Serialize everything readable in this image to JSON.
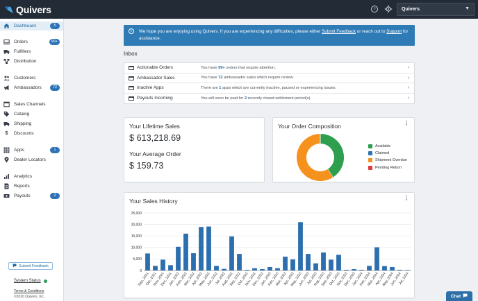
{
  "brand": {
    "name": "Quivers"
  },
  "topbar": {
    "help_icon": "help-circle-icon",
    "settings_icon": "gear-icon",
    "account_value": "Quivers"
  },
  "sidebar": {
    "items": [
      {
        "label": "Dashboard",
        "icon": "home-icon",
        "badge": "5",
        "active": true
      },
      {
        "label": "Orders",
        "icon": "inbox-icon",
        "badge": "99+"
      },
      {
        "label": "Fulfillers",
        "icon": "truck-icon"
      },
      {
        "label": "Distribution",
        "icon": "sitemap-icon"
      },
      {
        "label": "Customers",
        "icon": "users-icon"
      },
      {
        "label": "Ambassadors",
        "icon": "megaphone-icon",
        "badge": "72"
      },
      {
        "label": "Sales Channels",
        "icon": "browser-icon"
      },
      {
        "label": "Catalog",
        "icon": "tag-icon"
      },
      {
        "label": "Shipping",
        "icon": "shipping-truck-icon"
      },
      {
        "label": "Discounts",
        "icon": "dollar-icon"
      },
      {
        "label": "Apps",
        "icon": "grid-icon",
        "badge": "1"
      },
      {
        "label": "Dealer Locators",
        "icon": "map-pin-icon"
      },
      {
        "label": "Analytics",
        "icon": "bar-chart-icon"
      },
      {
        "label": "Reports",
        "icon": "document-icon"
      },
      {
        "label": "Payouts",
        "icon": "payout-icon",
        "badge": "2"
      }
    ],
    "feedback_button": "Submit Feedback",
    "system_status": "System Status",
    "terms": "Terms & Conditions",
    "copyright": "©2020 Quivers, Inc."
  },
  "alert": {
    "text_before": "We hope you are enjoying using Quivers. If you are experiencing any difficulties, please either ",
    "link1": "Submit Feedback",
    "text_middle": " or reach out to ",
    "link2": "Support",
    "text_after": " for assistance."
  },
  "inbox": {
    "title": "Inbox",
    "rows": [
      {
        "label": "Actionable Orders",
        "pre": "You have ",
        "value": "99+",
        "post": " orders that require attention."
      },
      {
        "label": "Ambassador Sales",
        "pre": "You have ",
        "value": "72",
        "post": " ambassador sales which require review."
      },
      {
        "label": "Inactive Apps",
        "pre": "There are ",
        "value": "1",
        "post": " apps which are currently inactive, paused or experiencing issues."
      },
      {
        "label": "Payouts Incoming",
        "pre": "You will soon be paid for ",
        "value": "2",
        "post": " recently closed settlement period(s)."
      }
    ]
  },
  "lifetime": {
    "title": "Your Lifetime Sales",
    "value": "$ 613,218.69",
    "avg_title": "Your Average Order",
    "avg_value": "$ 159.73"
  },
  "composition": {
    "title": "Your Order Composition",
    "legend": [
      {
        "label": "Available",
        "color": "#2e9e4f"
      },
      {
        "label": "Claimed",
        "color": "#2d73b5"
      },
      {
        "label": "Shipment Overdue",
        "color": "#f5921e"
      },
      {
        "label": "Pending Return",
        "color": "#e03b3b"
      }
    ],
    "chart_data": {
      "type": "pie",
      "labels": [
        "Available",
        "Claimed",
        "Shipment Overdue",
        "Pending Return"
      ],
      "values": [
        41,
        0,
        59,
        0
      ]
    }
  },
  "history": {
    "title": "Your Sales History",
    "chart_data": {
      "type": "bar",
      "categories": [
        "Sep, 2021",
        "Oct, 2021",
        "Nov, 2021",
        "Dec, 2021",
        "Jan, 2022",
        "Feb, 2022",
        "Mar, 2022",
        "Apr, 2022",
        "May, 2022",
        "Jun, 2022",
        "Jul, 2022",
        "Aug, 2022",
        "Sep, 2022",
        "Oct, 2022",
        "Nov, 2022",
        "Dec, 2022",
        "Jan, 2023",
        "Feb, 2023",
        "Mar, 2023",
        "Apr, 2023",
        "May, 2023",
        "Jun, 2023",
        "Jul, 2023",
        "Aug, 2023",
        "Sep, 2023",
        "Oct, 2023",
        "Nov, 2023",
        "Dec, 2023",
        "Jan, 2024",
        "Feb, 2024",
        "Mar, 2024",
        "Apr, 2024",
        "May, 2024",
        "Jun, 2024",
        "Jul, 2024"
      ],
      "values": [
        7400,
        2000,
        4700,
        2300,
        10300,
        16000,
        7500,
        18900,
        19100,
        2000,
        700,
        14800,
        7200,
        300,
        1000,
        600,
        1500,
        1000,
        6000,
        4800,
        21000,
        7200,
        3100,
        7800,
        4700,
        6800,
        300,
        600,
        300,
        2000,
        10100,
        1900,
        1500,
        300,
        200
      ],
      "ylim": [
        0,
        25000
      ],
      "yticks": [
        "0",
        "5,000",
        "10,000",
        "15,000",
        "20,000",
        "25,000"
      ],
      "grid": true
    }
  },
  "chat": {
    "label": "Chat"
  }
}
